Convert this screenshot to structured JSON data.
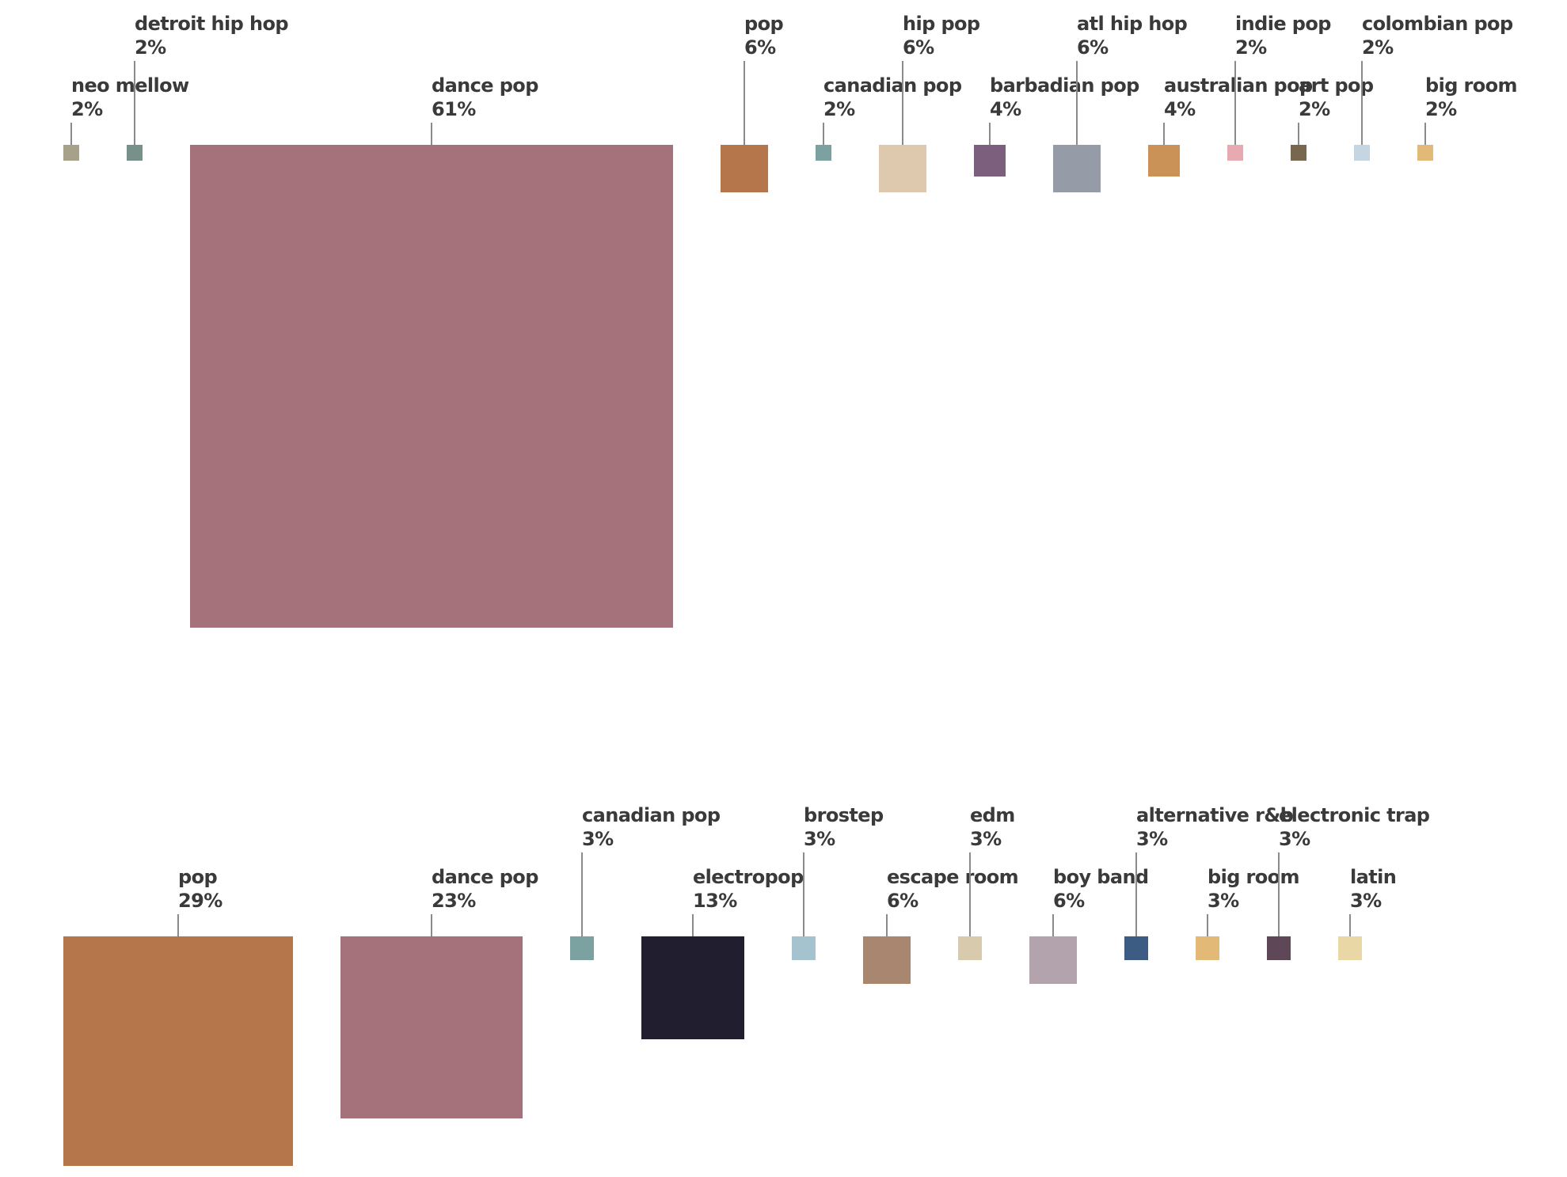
{
  "page": {
    "background_color": "#ffffff",
    "text_color": "#3a3a3a",
    "leader_line_color": "#8a8a8a"
  },
  "chart_data": [
    {
      "type": "proportional_area",
      "title": "",
      "row": 1,
      "unit": "percent",
      "sizing": "square side length proportional to value, 10px per percent",
      "layout": "squares top-aligned in a row, labels above with vertical leader lines at alternating heights",
      "items": [
        {
          "label": "neo mellow",
          "value": 2,
          "pct_label": "2%",
          "color": "#a7a189",
          "label_level": "low"
        },
        {
          "label": "detroit hip hop",
          "value": 2,
          "pct_label": "2%",
          "color": "#78908a",
          "label_level": "high"
        },
        {
          "label": "dance pop",
          "value": 61,
          "pct_label": "61%",
          "color": "#a5717b",
          "label_level": "low"
        },
        {
          "label": "pop",
          "value": 6,
          "pct_label": "6%",
          "color": "#b5764b",
          "label_level": "high"
        },
        {
          "label": "canadian pop",
          "value": 2,
          "pct_label": "2%",
          "color": "#7ba1a0",
          "label_level": "low"
        },
        {
          "label": "hip pop",
          "value": 6,
          "pct_label": "6%",
          "color": "#dec9ae",
          "label_level": "high"
        },
        {
          "label": "barbadian pop",
          "value": 4,
          "pct_label": "4%",
          "color": "#7c5e7d",
          "label_level": "low"
        },
        {
          "label": "atl hip hop",
          "value": 6,
          "pct_label": "6%",
          "color": "#969ca7",
          "label_level": "high"
        },
        {
          "label": "australian pop",
          "value": 4,
          "pct_label": "4%",
          "color": "#cb9257",
          "label_level": "low"
        },
        {
          "label": "indie pop",
          "value": 2,
          "pct_label": "2%",
          "color": "#e8aab1",
          "label_level": "high"
        },
        {
          "label": "art pop",
          "value": 2,
          "pct_label": "2%",
          "color": "#77674f",
          "label_level": "low"
        },
        {
          "label": "colombian pop",
          "value": 2,
          "pct_label": "2%",
          "color": "#c6d5e2",
          "label_level": "high"
        },
        {
          "label": "big room",
          "value": 2,
          "pct_label": "2%",
          "color": "#e2b977",
          "label_level": "low"
        }
      ]
    },
    {
      "type": "proportional_area",
      "title": "",
      "row": 2,
      "unit": "percent",
      "sizing": "square side length proportional to value, 10px per percent",
      "layout": "squares top-aligned in a row, labels above with vertical leader lines at alternating heights",
      "items": [
        {
          "label": "pop",
          "value": 29,
          "pct_label": "29%",
          "color": "#b5764b",
          "label_level": "low"
        },
        {
          "label": "dance pop",
          "value": 23,
          "pct_label": "23%",
          "color": "#a5717b",
          "label_level": "low"
        },
        {
          "label": "canadian pop",
          "value": 3,
          "pct_label": "3%",
          "color": "#7ba1a0",
          "label_level": "high"
        },
        {
          "label": "electropop",
          "value": 13,
          "pct_label": "13%",
          "color": "#211e30",
          "label_level": "low"
        },
        {
          "label": "brostep",
          "value": 3,
          "pct_label": "3%",
          "color": "#a5c3cf",
          "label_level": "high"
        },
        {
          "label": "escape room",
          "value": 6,
          "pct_label": "6%",
          "color": "#a98670",
          "label_level": "low"
        },
        {
          "label": "edm",
          "value": 3,
          "pct_label": "3%",
          "color": "#d8cbad",
          "label_level": "high"
        },
        {
          "label": "boy band",
          "value": 6,
          "pct_label": "6%",
          "color": "#b2a3ad",
          "label_level": "low"
        },
        {
          "label": "alternative r&b",
          "value": 3,
          "pct_label": "3%",
          "color": "#3d5c83",
          "label_level": "high"
        },
        {
          "label": "big room",
          "value": 3,
          "pct_label": "3%",
          "color": "#e2b977",
          "label_level": "low"
        },
        {
          "label": "electronic trap",
          "value": 3,
          "pct_label": "3%",
          "color": "#5e4756",
          "label_level": "high"
        },
        {
          "label": "latin",
          "value": 3,
          "pct_label": "3%",
          "color": "#e9d8a6",
          "label_level": "low"
        }
      ]
    }
  ]
}
